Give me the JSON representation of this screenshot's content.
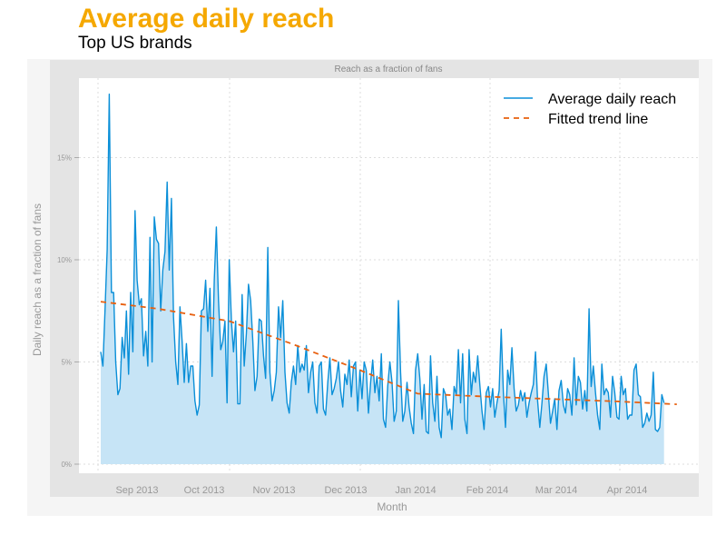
{
  "chart_data": {
    "type": "area",
    "title": "Average daily reach",
    "subtitle": "Top US brands",
    "strip_label": "Reach as a fraction of fans",
    "xlabel": "Month",
    "ylabel": "Daily reach as a fraction of fans",
    "y_ticks": [
      {
        "value": 0,
        "label": "0%"
      },
      {
        "value": 5,
        "label": "5%"
      },
      {
        "value": 10,
        "label": "10%"
      },
      {
        "value": 15,
        "label": "15%"
      }
    ],
    "x_tick_labels": [
      "Sep 2013",
      "Oct 2013",
      "Nov 2013",
      "Dec 2013",
      "Jan 2014",
      "Feb 2014",
      "Mar 2014",
      "Apr 2014"
    ],
    "ylim": [
      -0.7,
      19
    ],
    "x_unit": "days since 2013-08-02",
    "legend": {
      "placement": "top-right",
      "entries": [
        "Average daily reach",
        "Fitted trend line"
      ]
    },
    "colors": {
      "title": "#F5A800",
      "line": "#0A8FD8",
      "fill": "#C6E4F6",
      "trend": "#E8600F"
    },
    "series": [
      {
        "name": "Average daily reach",
        "start_date": "2013-08-02",
        "values": [
          5.5,
          4.8,
          7.5,
          10.5,
          18.1,
          8.4,
          8.4,
          5,
          3.4,
          3.7,
          6.2,
          5.2,
          7.5,
          4.4,
          8.4,
          5.5,
          12.4,
          9,
          7.8,
          8.1,
          5.3,
          6.5,
          4.8,
          11.1,
          5,
          12.1,
          11,
          10.8,
          7.5,
          9.5,
          10.4,
          13.8,
          9.5,
          13,
          7.2,
          5,
          3.9,
          7.7,
          6.0,
          4.0,
          5.9,
          4.0,
          4.8,
          4.8,
          3.1,
          2.4,
          2.9,
          7.5,
          7.6,
          9,
          6.5,
          8.6,
          4.3,
          9,
          11.6,
          8,
          5.6,
          6,
          7,
          3,
          10,
          7,
          5.5,
          7,
          2.95,
          2.95,
          8.3,
          4.8,
          6.4,
          8.8,
          8,
          6,
          3.6,
          4.3,
          7.1,
          7.0,
          5.3,
          4.2,
          10.6,
          4.5,
          3.1,
          3.6,
          4.5,
          7.7,
          6.2,
          8.0,
          4.5,
          3.0,
          2.5,
          4.0,
          4.8,
          3.9,
          5.8,
          4.5,
          4.9,
          4.6,
          5.8,
          3.5,
          4.5,
          5,
          3.0,
          2.5,
          4.8,
          5,
          2.7,
          2.4,
          4.0,
          5.2,
          3.4,
          3.7,
          4.2,
          5.0,
          3.6,
          2.8,
          4.4,
          3.9,
          5.1,
          3.3,
          4.8,
          5.0,
          2.6,
          4.6,
          3.2,
          5.0,
          4.6,
          2.5,
          4.0,
          5.1,
          3.5,
          4.3,
          3.1,
          5.4,
          2.2,
          1.8,
          3.8,
          5.0,
          4.0,
          2.1,
          2.6,
          8.0,
          4.5,
          2.1,
          2.6,
          4.0,
          2.8,
          2.0,
          1.5,
          4.6,
          5.4,
          4.2,
          2.2,
          3.9,
          1.6,
          1.5,
          5.3,
          3.0,
          2.1,
          4.3,
          1.8,
          1.3,
          3.7,
          3.4,
          2.4,
          2.7,
          1.7,
          3.8,
          3.4,
          5.6,
          3.0,
          5.4,
          2.2,
          1.5,
          5.6,
          3.4,
          4.5,
          4.0,
          5.3,
          3.9,
          2.6,
          1.7,
          3.5,
          3.8,
          2.8,
          3.7,
          2.3,
          3.0,
          3.6,
          6.6,
          3.5,
          1.8,
          4.6,
          3.9,
          5.7,
          3.7,
          2.6,
          2.9,
          3.6,
          3.1,
          3.5,
          2.3,
          3.0,
          3.5,
          3.9,
          5.5,
          3.1,
          1.8,
          3.0,
          4.3,
          4.9,
          3.5,
          2.0,
          2.6,
          3.2,
          1.7,
          3.6,
          4.1,
          2.9,
          2.5,
          3.7,
          3.4,
          2.4,
          5.2,
          2.9,
          4.3,
          4.0,
          2.7,
          3.6,
          2.6,
          7.6,
          3.8,
          4.8,
          3.5,
          2.4,
          1.7,
          4.9,
          3.4,
          3.7,
          3.5,
          2.3,
          4.3,
          3.5,
          2.3,
          2.2,
          4.3,
          3.4,
          3.7,
          2.2,
          2.4,
          2.4,
          4.6,
          4.9,
          3.4,
          3.3,
          1.8,
          2.0,
          2.5,
          2.1,
          2.4,
          4.5,
          1.7,
          1.6,
          1.8,
          3.4,
          3.0
        ]
      },
      {
        "name": "Fitted trend line",
        "x": [
          0,
          27,
          60,
          89,
          121,
          148,
          182,
          241,
          269
        ],
        "values": [
          7.95,
          7.6,
          7.0,
          5.9,
          4.6,
          3.45,
          3.3,
          3.07,
          2.93
        ]
      }
    ]
  }
}
